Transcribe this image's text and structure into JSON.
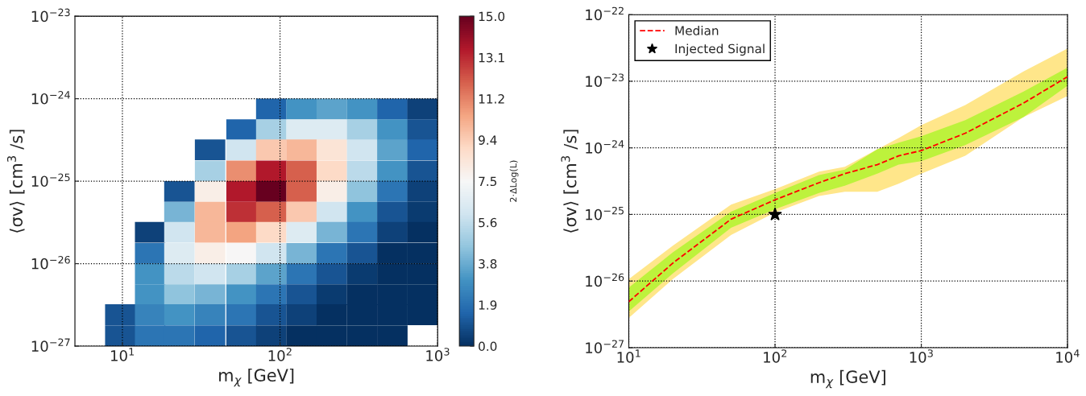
{
  "chart_data": [
    {
      "type": "scatter",
      "xlabel": "m$_{χ}$ [GeV]",
      "ylabel": "⟨σv⟩ [cm$^{3}$ /s]",
      "clabel": "2·ΔLog(L)",
      "marker": "square",
      "x": [
        88,
        137,
        213,
        332,
        516,
        802,
        57,
        88,
        137,
        213,
        332,
        516,
        802,
        36,
        57,
        88,
        137,
        213,
        332,
        516,
        802,
        36,
        57,
        88,
        137,
        213,
        332,
        516,
        802,
        23,
        36,
        57,
        88,
        137,
        213,
        332,
        516,
        802,
        23,
        36,
        57,
        88,
        137,
        213,
        332,
        516,
        802,
        15,
        23,
        36,
        57,
        88,
        137,
        213,
        332,
        516,
        802,
        15,
        23,
        36,
        57,
        88,
        137,
        213,
        332,
        516,
        802,
        15,
        23,
        36,
        57,
        88,
        137,
        213,
        332,
        516,
        802,
        15,
        23,
        36,
        57,
        88,
        137,
        213,
        332,
        516,
        802,
        9.7,
        15,
        23,
        36,
        57,
        88,
        137,
        213,
        332,
        516,
        802,
        9.7,
        15,
        23,
        36,
        57,
        88,
        137,
        213,
        332,
        516
      ],
      "values": [
        7.5e-25,
        7.5e-25,
        7.5e-25,
        7.5e-25,
        7.5e-25,
        7.5e-25,
        4.2e-25,
        4.2e-25,
        4.2e-25,
        4.2e-25,
        4.2e-25,
        4.2e-25,
        4.2e-25,
        2.4e-25,
        2.4e-25,
        2.4e-25,
        2.4e-25,
        2.4e-25,
        2.4e-25,
        2.4e-25,
        2.4e-25,
        1.33e-25,
        1.33e-25,
        1.33e-25,
        1.33e-25,
        1.33e-25,
        1.33e-25,
        1.33e-25,
        1.33e-25,
        7.5e-26,
        7.5e-26,
        7.5e-26,
        7.5e-26,
        7.5e-26,
        7.5e-26,
        7.5e-26,
        7.5e-26,
        7.5e-26,
        4.2e-26,
        4.2e-26,
        4.2e-26,
        4.2e-26,
        4.2e-26,
        4.2e-26,
        4.2e-26,
        4.2e-26,
        4.2e-26,
        2.4e-26,
        2.4e-26,
        2.4e-26,
        2.4e-26,
        2.4e-26,
        2.4e-26,
        2.4e-26,
        2.4e-26,
        2.4e-26,
        2.4e-26,
        1.33e-26,
        1.33e-26,
        1.33e-26,
        1.33e-26,
        1.33e-26,
        1.33e-26,
        1.33e-26,
        1.33e-26,
        1.33e-26,
        1.33e-26,
        7.5e-27,
        7.5e-27,
        7.5e-27,
        7.5e-27,
        7.5e-27,
        7.5e-27,
        7.5e-27,
        7.5e-27,
        7.5e-27,
        7.5e-27,
        4.2e-27,
        4.2e-27,
        4.2e-27,
        4.2e-27,
        4.2e-27,
        4.2e-27,
        4.2e-27,
        4.2e-27,
        4.2e-27,
        4.2e-27,
        2.4e-27,
        2.4e-27,
        2.4e-27,
        2.4e-27,
        2.4e-27,
        2.4e-27,
        2.4e-27,
        2.4e-27,
        2.4e-27,
        2.4e-27,
        2.4e-27,
        1.33e-27,
        1.33e-27,
        1.33e-27,
        1.33e-27,
        1.33e-27,
        1.33e-27,
        1.33e-27,
        1.33e-27,
        1.33e-27,
        1.33e-27
      ],
      "cvalues": [
        1.5,
        3,
        3.5,
        3,
        1.5,
        0.5,
        1.5,
        5,
        6.5,
        6.5,
        5,
        3,
        1,
        1,
        6,
        9.5,
        10,
        8.5,
        6,
        3.5,
        1.5,
        5,
        11,
        13.5,
        12,
        9,
        5.5,
        3,
        1,
        1,
        8,
        13.5,
        15,
        12,
        8,
        4.5,
        2,
        0.5,
        4,
        10,
        13,
        12,
        9.5,
        6,
        3,
        1,
        0.3,
        0.5,
        6,
        10,
        10.5,
        9,
        6.5,
        4,
        2,
        0.5,
        0,
        2,
        6.5,
        8,
        7.5,
        6,
        4,
        2,
        1,
        0,
        0,
        3,
        5.5,
        6,
        5,
        3.5,
        2,
        1,
        0.3,
        0,
        0,
        3,
        4.5,
        4,
        3,
        2,
        1,
        0.3,
        0,
        0,
        0,
        1,
        2.5,
        3,
        2.5,
        2,
        1,
        0.5,
        0,
        0,
        0,
        0,
        1,
        2,
        2,
        1.5,
        1,
        0.5,
        0,
        0,
        0,
        0
      ],
      "xlim": [
        5,
        1000
      ],
      "ylim": [
        1e-27,
        1e-23
      ],
      "xticks": [
        {
          "value": 10,
          "label": "10$^{1}$"
        },
        {
          "value": 100,
          "label": "10$^{2}$"
        },
        {
          "value": 1000,
          "label": "10$^{3}$"
        }
      ],
      "yticks": [
        {
          "value": 1e-27,
          "label": "10$^{−27}$"
        },
        {
          "value": 1e-26,
          "label": "10$^{−26}$"
        },
        {
          "value": 1e-25,
          "label": "10$^{−25}$"
        },
        {
          "value": 1e-24,
          "label": "10$^{−24}$"
        },
        {
          "value": 1e-23,
          "label": "10$^{−23}$"
        }
      ],
      "clim": [
        0,
        15
      ],
      "cticks": [
        {
          "value": 0,
          "label": "0.0"
        },
        {
          "value": 1.875,
          "label": "1.9"
        },
        {
          "value": 3.75,
          "label": "3.8"
        },
        {
          "value": 5.625,
          "label": "5.6"
        },
        {
          "value": 7.5,
          "label": "7.5"
        },
        {
          "value": 9.375,
          "label": "9.4"
        },
        {
          "value": 11.25,
          "label": "11.2"
        },
        {
          "value": 13.125,
          "label": "13.1"
        },
        {
          "value": 15,
          "label": "15.0"
        }
      ],
      "log": "xy",
      "grid": true
    },
    {
      "type": "line",
      "xlabel": "m$_{χ}$ [GeV]",
      "ylabel": "⟨σv⟩ [cm$^{3}$ /s]",
      "x": [
        10,
        20,
        50,
        100,
        200,
        300,
        500,
        700,
        1000,
        2000,
        5000,
        10000
      ],
      "series": [
        {
          "type": "area",
          "color": "#ffe68a",
          "values": [
            null,
            null,
            null,
            null,
            null,
            null,
            null,
            null,
            null,
            null,
            null,
            null
          ],
          "lower": [
            2.8e-27,
            1.07e-26,
            4.9e-26,
            1.07e-25,
            1.9e-25,
            2.2e-25,
            2.2e-25,
            2.9e-25,
            4.1e-25,
            7.6e-25,
            2.9e-24,
            6e-24
          ],
          "upper": [
            1.07e-26,
            3.4e-26,
            1.4e-25,
            2.4e-25,
            4.4e-25,
            5.2e-25,
            9.5e-25,
            1.4e-24,
            2.2e-24,
            4.4e-24,
            1.4e-23,
            3.1e-23
          ]
        },
        {
          "type": "area",
          "color": "#bdf23c",
          "values": [
            null,
            null,
            null,
            null,
            null,
            null,
            null,
            null,
            null,
            null,
            null,
            null
          ],
          "lower": [
            3.5e-27,
            1.3e-26,
            6.3e-26,
            1.2e-25,
            2.1e-25,
            2.7e-25,
            4.1e-25,
            5.6e-25,
            6.3e-25,
            1.1e-24,
            2.9e-24,
            8.6e-24
          ],
          "upper": [
            8e-27,
            2.7e-26,
            1.1e-25,
            2.1e-25,
            3.9e-25,
            4.7e-25,
            9.5e-25,
            1.2e-24,
            1.5e-24,
            2.6e-24,
            7e-24,
            1.6e-23
          ]
        },
        {
          "type": "line",
          "name": "Median",
          "color": "#ff0000",
          "line_style": "dashed",
          "marker": "none",
          "values": [
            4.9e-27,
            1.86e-26,
            8.5e-26,
            1.66e-25,
            3e-25,
            4.1e-25,
            5.6e-25,
            7.6e-25,
            9.1e-25,
            1.66e-24,
            4.7e-24,
            1.17e-23
          ]
        },
        {
          "type": "scatter",
          "name": "Injected Signal",
          "color": "#000000",
          "marker": "star",
          "x": [
            100
          ],
          "values": [
            1e-25
          ]
        }
      ],
      "xlim": [
        10,
        10000
      ],
      "ylim": [
        1e-27,
        1e-22
      ],
      "xticks": [
        {
          "value": 10,
          "label": "10$^{1}$"
        },
        {
          "value": 100,
          "label": "10$^{2}$"
        },
        {
          "value": 1000,
          "label": "10$^{3}$"
        },
        {
          "value": 10000,
          "label": "10$^{4}$"
        }
      ],
      "yticks": [
        {
          "value": 1e-27,
          "label": "10$^{−27}$"
        },
        {
          "value": 1e-26,
          "label": "10$^{−26}$"
        },
        {
          "value": 1e-25,
          "label": "10$^{−25}$"
        },
        {
          "value": 1e-24,
          "label": "10$^{−24}$"
        },
        {
          "value": 1e-23,
          "label": "10$^{−23}$"
        },
        {
          "value": 1e-22,
          "label": "10$^{−22}$"
        }
      ],
      "log": "xy",
      "grid": true,
      "legend": "top left"
    }
  ]
}
